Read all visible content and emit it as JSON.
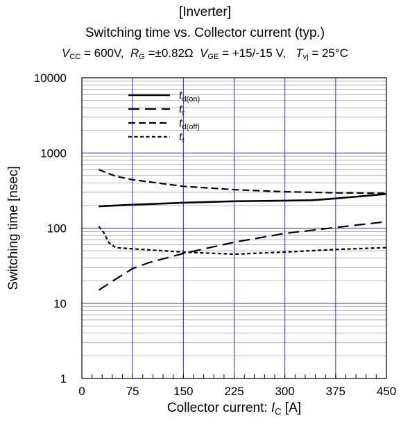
{
  "chart_data": {
    "type": "line",
    "title": "[Inverter]",
    "subtitle": "Switching time vs. Collector current  (typ.)",
    "conditions": {
      "vcc_sym": "V",
      "vcc_sub": "CC",
      "vcc_val": "= 600V,",
      "rg_sym": "R",
      "rg_sub": "G",
      "rg_val": "=±0.82Ω",
      "vge_sym": "V",
      "vge_sub": "GE",
      "vge_val": "=  +15/-15 V,",
      "tvj_sym": "T",
      "tvj_sub": "vj",
      "tvj_val": "= 25°C"
    },
    "xlabel_text": "Collector current: ",
    "xlabel_sym": "I",
    "xlabel_sub": "C",
    "xlabel_unit": " [A]",
    "ylabel": "Switching time  [nsec]",
    "xlim": [
      0,
      450
    ],
    "ylim": [
      1,
      10000
    ],
    "yscale": "log",
    "xticks": [
      "0",
      "75",
      "150",
      "225",
      "300",
      "375",
      "450"
    ],
    "yticks": [
      "1",
      "10",
      "100",
      "1000",
      "10000"
    ],
    "grid": true,
    "legend_position": "top-left",
    "series": [
      {
        "name": "t",
        "sub": "d(on)",
        "dash": "solid",
        "x": [
          25,
          75,
          150,
          225,
          300,
          340,
          375,
          450
        ],
        "y": [
          195,
          205,
          218,
          228,
          232,
          235,
          248,
          285
        ]
      },
      {
        "name": "t",
        "sub": "r",
        "dash": "long",
        "x": [
          25,
          50,
          75,
          100,
          150,
          225,
          300,
          375,
          450
        ],
        "y": [
          15,
          21,
          29,
          35,
          46,
          65,
          85,
          102,
          122
        ]
      },
      {
        "name": "t",
        "sub": "d(off)",
        "dash": "medium",
        "x": [
          25,
          50,
          75,
          150,
          225,
          300,
          375,
          450
        ],
        "y": [
          600,
          490,
          440,
          360,
          325,
          305,
          295,
          290
        ]
      },
      {
        "name": "t",
        "sub": "f",
        "dash": "short",
        "x": [
          25,
          32,
          40,
          50,
          75,
          150,
          225,
          300,
          375,
          450
        ],
        "y": [
          105,
          88,
          64,
          55,
          53,
          48,
          45,
          48,
          52,
          55
        ]
      }
    ]
  }
}
